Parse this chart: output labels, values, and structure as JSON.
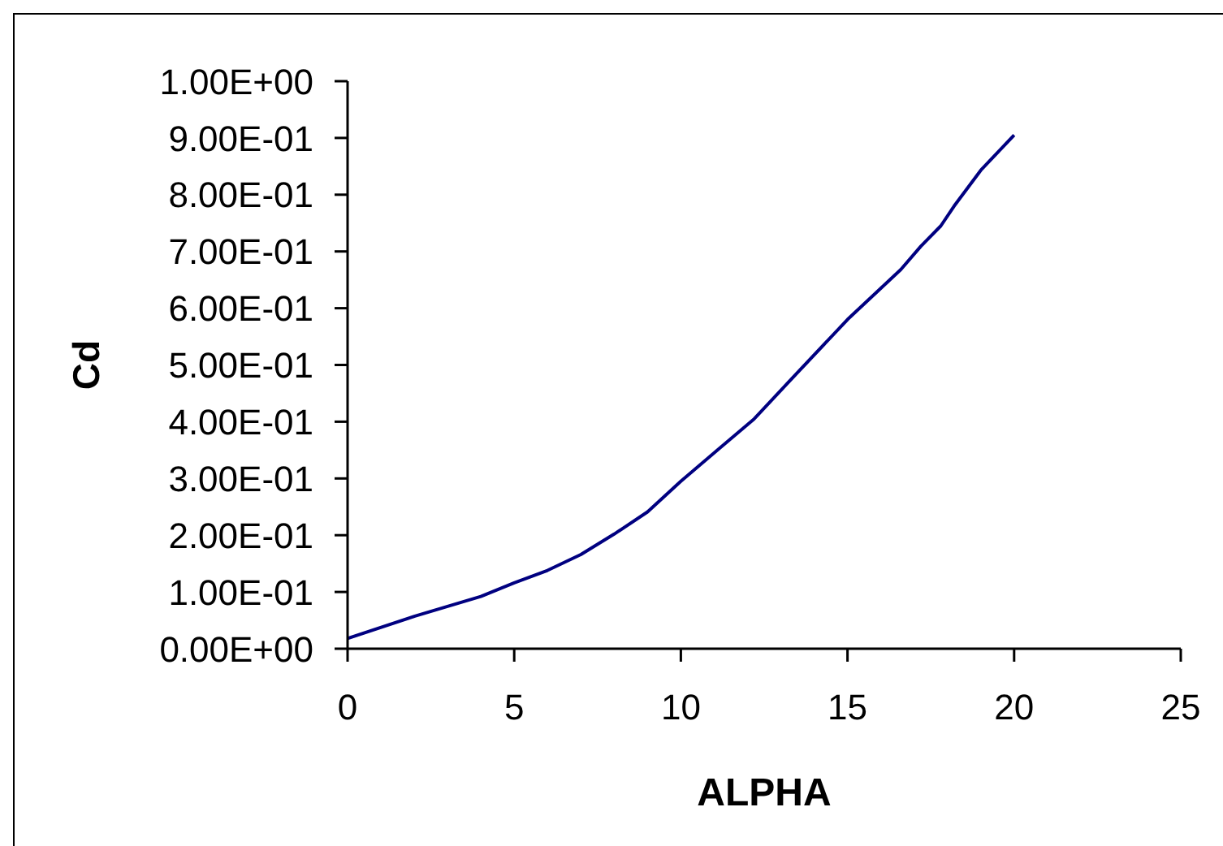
{
  "chart_data": {
    "type": "line",
    "xlabel": "ALPHA",
    "ylabel": "Cd",
    "x": [
      0,
      2,
      4,
      5,
      6,
      7,
      8,
      9,
      10,
      11.1,
      12.2,
      13.3,
      15,
      16.6,
      17.2,
      17.8,
      18.2,
      19,
      20
    ],
    "values": [
      0.018,
      0.057,
      0.092,
      0.116,
      0.138,
      0.166,
      0.202,
      0.241,
      0.295,
      0.35,
      0.405,
      0.474,
      0.58,
      0.668,
      0.709,
      0.745,
      0.78,
      0.843,
      0.905
    ],
    "color": "#000080",
    "xlim": [
      0,
      25
    ],
    "xticks": [
      0,
      5,
      10,
      15,
      20,
      25
    ],
    "ylim": [
      0,
      1
    ],
    "yticks": [
      {
        "value": 0,
        "label": "0.00E+00"
      },
      {
        "value": 0.1,
        "label": "1.00E-01"
      },
      {
        "value": 0.2,
        "label": "2.00E-01"
      },
      {
        "value": 0.3,
        "label": "3.00E-01"
      },
      {
        "value": 0.4,
        "label": "4.00E-01"
      },
      {
        "value": 0.5,
        "label": "5.00E-01"
      },
      {
        "value": 0.6,
        "label": "6.00E-01"
      },
      {
        "value": 0.7,
        "label": "7.00E-01"
      },
      {
        "value": 0.8,
        "label": "8.00E-01"
      },
      {
        "value": 0.9,
        "label": "9.00E-01"
      },
      {
        "value": 1,
        "label": "1.00E+00"
      }
    ]
  }
}
